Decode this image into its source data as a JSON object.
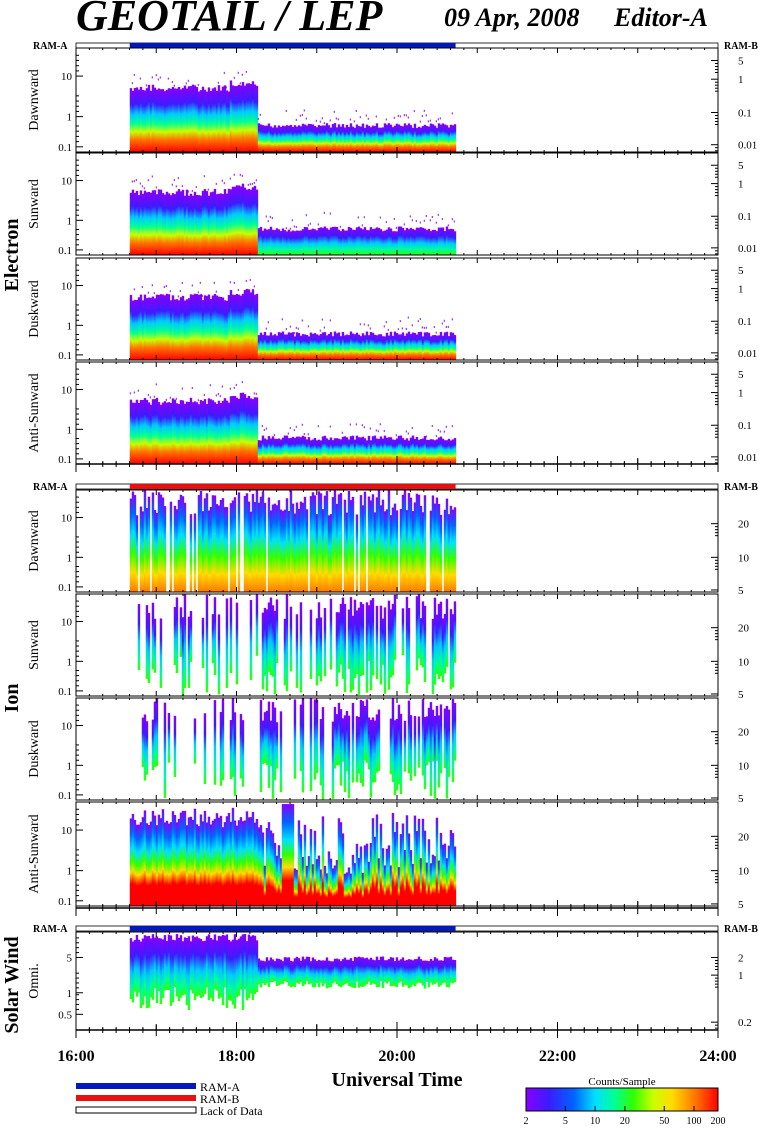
{
  "header": {
    "title": "GEOTAIL / LEP",
    "date": "09 Apr, 2008",
    "editor": "Editor-A"
  },
  "colors": {
    "ram_a": "#0018c0",
    "ram_b": "#e81010",
    "colorbar": [
      "#8800ff",
      "#3b1cff",
      "#0064ff",
      "#00e0ff",
      "#00ff96",
      "#32ff00",
      "#c8ff00",
      "#ffdc00",
      "#ff7800",
      "#ff0000"
    ]
  },
  "groups": [
    {
      "label": "Electron",
      "ram_left": "RAM-A",
      "ram_right": "RAM-B",
      "ram_color": "ram_a",
      "panels": [
        {
          "label": "Dawnward",
          "left_ticks": [
            "10",
            "1",
            "0.1"
          ],
          "right_ticks": [
            "5",
            "1",
            "0.1",
            "0.01"
          ]
        },
        {
          "label": "Sunward",
          "left_ticks": [
            "10",
            "1",
            "0.1"
          ],
          "right_ticks": [
            "5",
            "1",
            "0.1",
            "0.01"
          ]
        },
        {
          "label": "Duskward",
          "left_ticks": [
            "10",
            "1",
            "0.1"
          ],
          "right_ticks": [
            "5",
            "1",
            "0.1",
            "0.01"
          ]
        },
        {
          "label": "Anti-Sunward",
          "left_ticks": [
            "10",
            "1",
            "0.1"
          ],
          "right_ticks": [
            "5",
            "1",
            "0.1",
            "0.01"
          ]
        }
      ]
    },
    {
      "label": "Ion",
      "ram_left": "RAM-A",
      "ram_right": "RAM-B",
      "ram_color": "ram_b",
      "panels": [
        {
          "label": "Dawnward",
          "left_ticks": [
            "10",
            "1",
            "0.1"
          ],
          "right_ticks": [
            "20",
            "10",
            "5"
          ]
        },
        {
          "label": "Sunward",
          "left_ticks": [
            "10",
            "1",
            "0.1"
          ],
          "right_ticks": [
            "20",
            "10",
            "5"
          ]
        },
        {
          "label": "Duskward",
          "left_ticks": [
            "10",
            "1",
            "0.1"
          ],
          "right_ticks": [
            "20",
            "10",
            "5"
          ]
        },
        {
          "label": "Anti-Sunward",
          "left_ticks": [
            "10",
            "1",
            "0.1"
          ],
          "right_ticks": [
            "20",
            "10",
            "5"
          ]
        }
      ]
    },
    {
      "label": "Solar Wind",
      "ram_left": "RAM-A",
      "ram_right": "RAM-B",
      "ram_color": "ram_a",
      "panels": [
        {
          "label": "Omni.",
          "left_ticks": [
            "5",
            "1",
            "0.5"
          ],
          "right_ticks": [
            "2",
            "1",
            "0.2"
          ]
        }
      ]
    }
  ],
  "chart_data": {
    "type": "heatmap",
    "title": "GEOTAIL / LEP",
    "xlabel": "Universal Time",
    "x_ticks": [
      "16:00",
      "18:00",
      "20:00",
      "22:00",
      "24:00"
    ],
    "x_range_hours": [
      16,
      24
    ],
    "data_coverage_hours": [
      16.67,
      20.73
    ],
    "ram_a_intervals_hours": [
      [
        16.67,
        20.73
      ]
    ],
    "ram_b_intervals_hours": [
      [
        16.67,
        20.73
      ]
    ],
    "colorbar": {
      "title": "Counts/Sample",
      "ticks": [
        "2",
        "5",
        "10",
        "20",
        "50",
        "100",
        "200"
      ]
    },
    "legend": [
      "RAM-A",
      "RAM-B",
      "Lack of Data"
    ]
  }
}
